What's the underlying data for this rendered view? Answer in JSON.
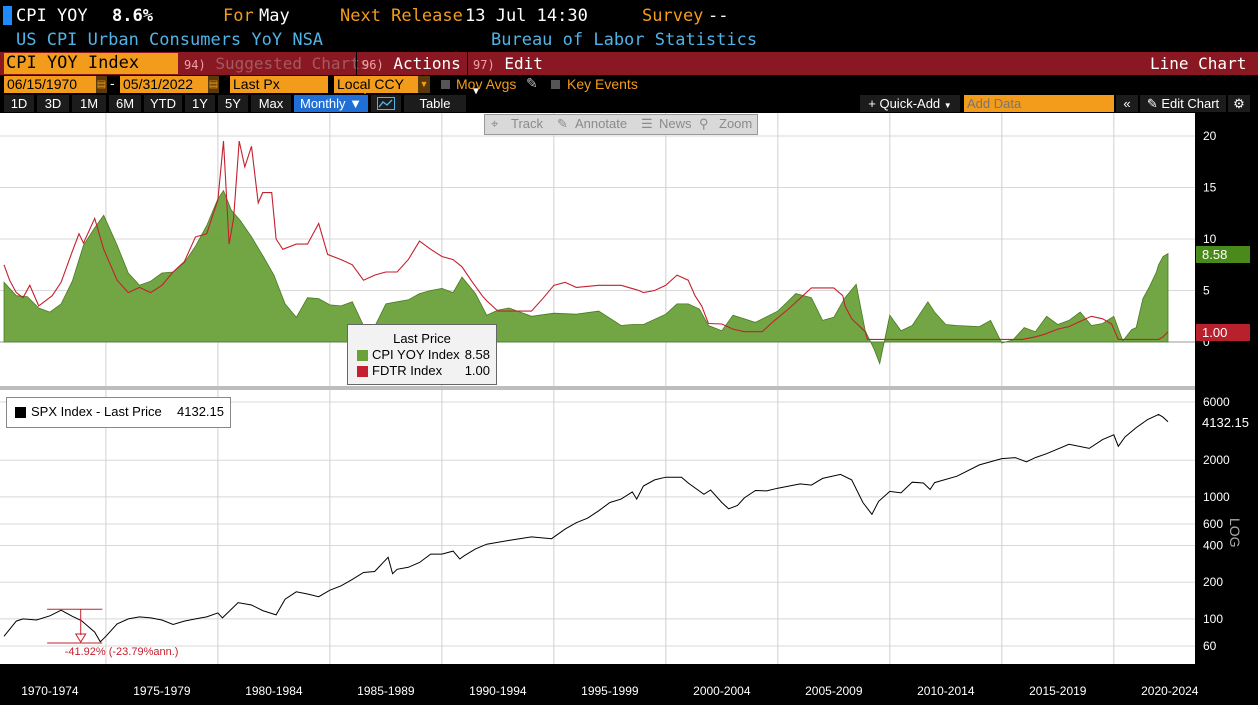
{
  "header": {
    "ticker": "CPI YOY",
    "value": "8.6%",
    "for_label": "For",
    "for_value": "May",
    "next_label": "Next Release",
    "next_value": "13 Jul 14:30",
    "survey_label": "Survey",
    "survey_value": "--",
    "description": "US CPI Urban Consumers YoY NSA",
    "source": "Bureau of Labor Statistics"
  },
  "menu": {
    "security": "CPI YOY Index",
    "suggested_num": "94)",
    "suggested": "Suggested Charts",
    "actions_num": "96)",
    "actions": "Actions",
    "edit_num": "97)",
    "edit": "Edit",
    "chart_type": "Line Chart"
  },
  "controls": {
    "start_date": "06/15/1970",
    "end_date": "05/31/2022",
    "field": "Last Px",
    "currency": "Local CCY",
    "mov_avgs": "Mov Avgs",
    "key_events": "Key Events",
    "ranges": [
      "1D",
      "3D",
      "1M",
      "6M",
      "YTD",
      "1Y",
      "5Y",
      "Max"
    ],
    "frequency": "Monthly",
    "table": "Table",
    "quick_add": "+ Quick-Add",
    "add_data_placeholder": "Add Data",
    "edit_chart": "Edit Chart"
  },
  "overlay": {
    "track": "Track",
    "annotate": "Annotate",
    "news": "News",
    "zoom": "Zoom"
  },
  "colors": {
    "cpi": "#6aa13a",
    "fdtr": "#c4202f",
    "spx": "#000000",
    "accent": "#f39c1c",
    "menubar": "#8a1822"
  },
  "chart_data": [
    {
      "type": "area",
      "panel": "top",
      "legend_title": "Last Price",
      "legend_position": "inside-bottom-left",
      "y_axis_side": "right",
      "ylim": [
        -2,
        20
      ],
      "yticks": [
        0,
        5,
        10,
        15,
        20
      ],
      "series": [
        {
          "name": "CPI YOY Index",
          "last": 8.58,
          "last_label": "8.58",
          "style": "area",
          "x": [
            1970.45,
            1971.0,
            1971.5,
            1972.0,
            1972.5,
            1973.0,
            1973.5,
            1974.0,
            1974.5,
            1974.9,
            1975.5,
            1976.0,
            1976.5,
            1977.0,
            1977.5,
            1978.0,
            1978.5,
            1979.0,
            1979.5,
            1980.0,
            1980.25,
            1980.6,
            1981.0,
            1981.5,
            1982.0,
            1982.5,
            1983.0,
            1983.5,
            1984.0,
            1984.5,
            1985.0,
            1985.5,
            1986.0,
            1986.5,
            1987.0,
            1987.5,
            1988.0,
            1988.5,
            1989.0,
            1989.5,
            1990.0,
            1990.5,
            1990.9,
            1991.5,
            1992.0,
            1992.5,
            1993.0,
            1994.0,
            1995.0,
            1996.0,
            1997.0,
            1998.0,
            1998.5,
            1999.0,
            2000.0,
            2000.5,
            2001.0,
            2001.5,
            2001.9,
            2002.5,
            2003.0,
            2004.0,
            2005.0,
            2005.8,
            2006.5,
            2007.0,
            2007.5,
            2008.0,
            2008.5,
            2008.9,
            2009.3,
            2009.55,
            2010.0,
            2010.5,
            2011.0,
            2011.7,
            2012.0,
            2012.5,
            2013.0,
            2014.0,
            2014.5,
            2015.0,
            2015.5,
            2016.0,
            2016.5,
            2017.0,
            2017.5,
            2018.0,
            2018.5,
            2019.0,
            2019.5,
            2020.0,
            2020.4,
            2020.8,
            2021.0,
            2021.3,
            2021.6,
            2021.9,
            2022.0,
            2022.2,
            2022.42
          ],
          "values": [
            5.8,
            4.5,
            4.4,
            3.3,
            2.9,
            3.7,
            5.9,
            9.4,
            11.1,
            12.3,
            9.4,
            6.7,
            5.5,
            5.9,
            6.7,
            6.8,
            7.7,
            9.3,
            11.3,
            13.9,
            14.7,
            12.8,
            11.8,
            10.2,
            8.4,
            6.5,
            3.7,
            2.4,
            4.3,
            4.2,
            3.6,
            3.5,
            3.9,
            1.6,
            1.5,
            3.7,
            3.9,
            4.1,
            4.7,
            5.0,
            5.2,
            4.8,
            6.3,
            4.7,
            2.6,
            3.1,
            3.3,
            2.5,
            2.8,
            2.7,
            3.0,
            1.6,
            1.7,
            1.7,
            2.7,
            3.7,
            3.7,
            3.2,
            1.6,
            1.1,
            2.6,
            1.9,
            3.0,
            4.7,
            4.3,
            2.1,
            2.4,
            4.3,
            5.6,
            1.1,
            -0.7,
            -2.1,
            2.6,
            1.1,
            1.6,
            3.9,
            2.9,
            1.7,
            1.6,
            1.5,
            2.1,
            -0.1,
            0.2,
            1.4,
            1.0,
            2.5,
            1.7,
            2.1,
            2.9,
            1.6,
            1.8,
            2.5,
            0.1,
            1.2,
            1.4,
            4.2,
            5.4,
            6.8,
            7.5,
            8.3,
            8.58
          ]
        },
        {
          "name": "FDTR Index",
          "last": 1.0,
          "last_label": "1.00",
          "style": "line",
          "x": [
            1970.45,
            1970.7,
            1971.0,
            1971.3,
            1971.6,
            1972.0,
            1972.6,
            1973.0,
            1973.5,
            1973.8,
            1974.0,
            1974.5,
            1974.9,
            1975.5,
            1976.0,
            1976.5,
            1977.0,
            1977.5,
            1978.0,
            1978.5,
            1979.0,
            1979.5,
            1979.8,
            1980.0,
            1980.25,
            1980.5,
            1980.7,
            1980.95,
            1981.2,
            1981.5,
            1981.8,
            1982.0,
            1982.4,
            1982.6,
            1982.9,
            1983.5,
            1984.0,
            1984.5,
            1984.9,
            1985.5,
            1986.0,
            1986.5,
            1987.0,
            1987.5,
            1988.0,
            1988.5,
            1989.0,
            1989.5,
            1990.0,
            1990.5,
            1990.9,
            1991.3,
            1991.8,
            1992.0,
            1992.5,
            1993.0,
            1993.8,
            1994.0,
            1994.5,
            1995.0,
            1995.5,
            1996.0,
            1997.0,
            1998.0,
            1998.8,
            1999.0,
            1999.5,
            2000.0,
            2000.5,
            2001.0,
            2001.3,
            2001.6,
            2001.9,
            2002.5,
            2003.0,
            2003.5,
            2004.3,
            2004.8,
            2005.5,
            2006.0,
            2006.5,
            2007.5,
            2007.9,
            2008.0,
            2008.3,
            2008.9,
            2009.0,
            2012.0,
            2015.9,
            2016.5,
            2016.9,
            2017.5,
            2018.0,
            2018.5,
            2019.0,
            2019.5,
            2019.9,
            2020.2,
            2022.0,
            2022.2,
            2022.42
          ],
          "values": [
            7.5,
            6.0,
            4.8,
            4.3,
            5.5,
            3.5,
            4.5,
            5.8,
            8.8,
            10.5,
            9.6,
            12.0,
            9.0,
            6.0,
            4.8,
            5.3,
            4.8,
            5.5,
            6.8,
            7.8,
            10.2,
            10.5,
            12.5,
            13.8,
            19.5,
            9.5,
            12.0,
            19.5,
            17.0,
            19.0,
            13.5,
            14.5,
            14.5,
            10.0,
            9.0,
            9.5,
            9.5,
            11.5,
            8.5,
            8.0,
            7.5,
            6.0,
            6.5,
            6.8,
            6.8,
            8.0,
            9.8,
            9.0,
            8.3,
            8.0,
            7.3,
            6.0,
            4.5,
            4.0,
            3.0,
            3.0,
            3.0,
            3.0,
            4.2,
            5.5,
            5.8,
            5.3,
            5.5,
            5.5,
            5.0,
            4.8,
            5.0,
            5.5,
            6.5,
            6.0,
            4.5,
            3.5,
            1.8,
            1.75,
            1.25,
            1.0,
            1.0,
            2.0,
            3.25,
            4.25,
            5.25,
            5.25,
            4.5,
            3.5,
            2.25,
            1.0,
            0.25,
            0.25,
            0.25,
            0.5,
            0.75,
            1.25,
            1.5,
            2.0,
            2.5,
            2.25,
            1.75,
            0.25,
            0.25,
            0.5,
            1.0
          ]
        }
      ]
    },
    {
      "type": "line",
      "panel": "bottom",
      "legend_position": "inside-top-left",
      "y_axis_side": "right",
      "y_scale": "log",
      "y_axis_label": "LOG",
      "ylim": [
        50,
        7000
      ],
      "yticks": [
        60,
        100,
        200,
        400,
        600,
        1000,
        2000,
        6000
      ],
      "xtick_labels": [
        "1970-1974",
        "1975-1979",
        "1980-1984",
        "1985-1989",
        "1990-1994",
        "1995-1999",
        "2000-2004",
        "2005-2009",
        "2010-2014",
        "2015-2019",
        "2020-2024"
      ],
      "annotation": "-41.92% (-23.79%ann.)",
      "annotation_range": {
        "start_x": 1973.0,
        "start_y": 120,
        "end_x": 1974.75,
        "end_y": 63.5
      },
      "series": [
        {
          "name": "SPX Index - Last Price",
          "last": 4132.15,
          "last_label": "4132.15",
          "x": [
            1970.45,
            1971.0,
            1971.3,
            1971.9,
            1972.5,
            1973.0,
            1973.5,
            1973.9,
            1974.5,
            1974.75,
            1975.0,
            1975.5,
            1976.0,
            1976.5,
            1977.0,
            1977.5,
            1978.0,
            1978.5,
            1979.0,
            1979.5,
            1980.0,
            1980.2,
            1980.9,
            1981.5,
            1982.0,
            1982.6,
            1983.0,
            1983.5,
            1984.0,
            1984.5,
            1985.0,
            1985.5,
            1986.0,
            1986.5,
            1987.0,
            1987.6,
            1987.8,
            1988.0,
            1988.5,
            1989.0,
            1989.5,
            1990.0,
            1990.5,
            1990.8,
            1991.0,
            1991.5,
            1992.0,
            1993.0,
            1994.0,
            1994.9,
            1995.5,
            1996.0,
            1996.5,
            1997.0,
            1997.5,
            1998.0,
            1998.5,
            1998.7,
            1999.0,
            1999.5,
            2000.0,
            2000.7,
            2001.0,
            2001.7,
            2002.0,
            2002.5,
            2002.8,
            2003.2,
            2003.5,
            2004.0,
            2004.5,
            2005.0,
            2006.0,
            2006.5,
            2007.0,
            2007.8,
            2008.3,
            2008.8,
            2009.2,
            2009.5,
            2010.0,
            2010.5,
            2011.0,
            2011.5,
            2011.8,
            2012.0,
            2013.0,
            2014.0,
            2015.0,
            2015.6,
            2016.1,
            2016.5,
            2017.0,
            2018.0,
            2018.9,
            2019.5,
            2020.0,
            2020.2,
            2020.5,
            2021.0,
            2021.5,
            2022.0,
            2022.2,
            2022.42
          ],
          "values": [
            72,
            96,
            100,
            98,
            106,
            118,
            105,
            97,
            78,
            65,
            72,
            91,
            100,
            104,
            102,
            98,
            90,
            96,
            100,
            104,
            112,
            102,
            136,
            130,
            117,
            108,
            145,
            167,
            160,
            152,
            172,
            187,
            211,
            240,
            245,
            320,
            235,
            255,
            265,
            290,
            340,
            340,
            360,
            310,
            330,
            375,
            410,
            440,
            470,
            455,
            545,
            615,
            670,
            770,
            900,
            960,
            1100,
            960,
            1230,
            1380,
            1450,
            1450,
            1300,
            1050,
            1140,
            900,
            800,
            850,
            980,
            1130,
            1120,
            1180,
            1280,
            1250,
            1420,
            1530,
            1380,
            900,
            720,
            920,
            1110,
            1080,
            1320,
            1300,
            1150,
            1310,
            1480,
            1830,
            2060,
            2100,
            1940,
            2100,
            2260,
            2700,
            2500,
            2950,
            3230,
            2600,
            3100,
            3700,
            4300,
            4750,
            4500,
            4132
          ]
        }
      ]
    }
  ]
}
